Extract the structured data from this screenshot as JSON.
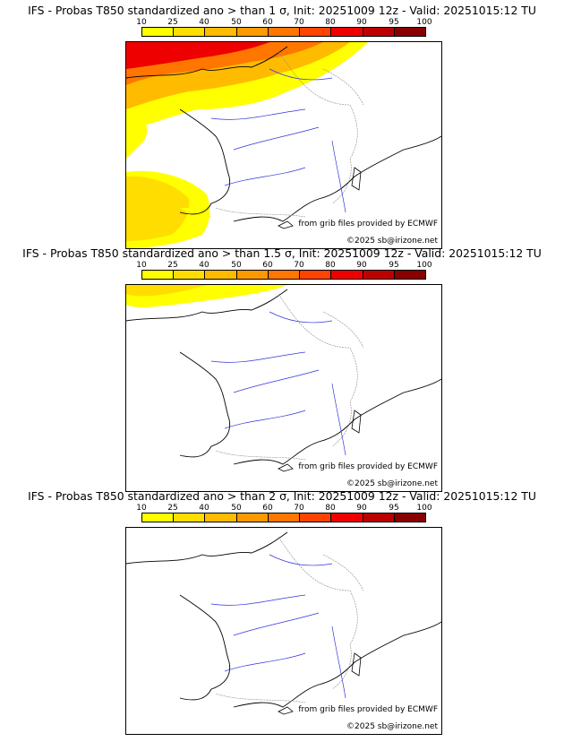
{
  "colorbar": {
    "labels": [
      "10",
      "25",
      "40",
      "50",
      "60",
      "70",
      "80",
      "90",
      "95",
      "100"
    ],
    "colors": [
      "#ffff00",
      "#ffdd00",
      "#ffbb00",
      "#ff9900",
      "#ff7700",
      "#ff4400",
      "#ee0000",
      "#bb0000",
      "#880000"
    ]
  },
  "panels": [
    {
      "title": "IFS - Probas T850  standardized ano > than 1 σ, Init: 20251009 12z - Valid: 20251015:12 TU",
      "credit_source": "from grib files provided by ECMWF",
      "credit_copyright": "©2025 sb@irizone.net"
    },
    {
      "title": "IFS - Probas T850  standardized ano > than 1.5 σ, Init: 20251009 12z - Valid: 20251015:12 TU",
      "credit_source": "from grib files provided by ECMWF",
      "credit_copyright": "©2025 sb@irizone.net"
    },
    {
      "title": "IFS - Probas T850  standardized ano > than 2 σ, Init: 20251009 12z - Valid: 20251015:12 TU",
      "credit_source": "from grib files provided by ECMWF",
      "credit_copyright": "©2025 sb@irizone.net"
    }
  ]
}
